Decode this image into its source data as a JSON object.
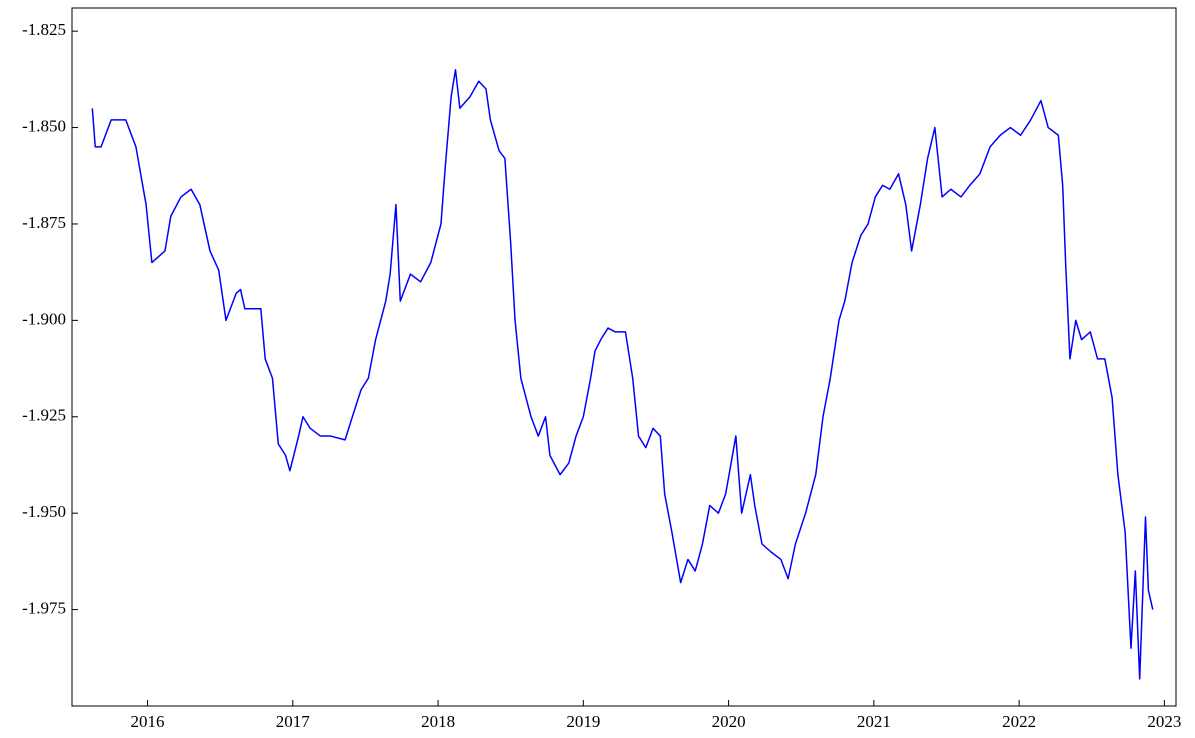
{
  "chart_data": {
    "type": "line",
    "x": [
      2015.62,
      2015.64,
      2015.68,
      2015.75,
      2015.85,
      2015.92,
      2015.99,
      2016.03,
      2016.12,
      2016.16,
      2016.23,
      2016.3,
      2016.36,
      2016.43,
      2016.49,
      2016.54,
      2016.61,
      2016.64,
      2016.67,
      2016.78,
      2016.81,
      2016.86,
      2016.9,
      2016.95,
      2016.98,
      2017.04,
      2017.07,
      2017.12,
      2017.19,
      2017.26,
      2017.36,
      2017.41,
      2017.47,
      2017.52,
      2017.57,
      2017.64,
      2017.67,
      2017.71,
      2017.74,
      2017.81,
      2017.88,
      2017.95,
      2018.02,
      2018.05,
      2018.09,
      2018.12,
      2018.15,
      2018.22,
      2018.28,
      2018.33,
      2018.36,
      2018.42,
      2018.46,
      2018.5,
      2018.53,
      2018.57,
      2018.64,
      2018.69,
      2018.74,
      2018.77,
      2018.84,
      2018.9,
      2018.95,
      2019.0,
      2019.05,
      2019.08,
      2019.12,
      2019.17,
      2019.22,
      2019.29,
      2019.34,
      2019.38,
      2019.43,
      2019.48,
      2019.53,
      2019.56,
      2019.61,
      2019.67,
      2019.72,
      2019.77,
      2019.82,
      2019.87,
      2019.93,
      2019.98,
      2020.05,
      2020.09,
      2020.15,
      2020.18,
      2020.23,
      2020.29,
      2020.36,
      2020.41,
      2020.46,
      2020.53,
      2020.6,
      2020.65,
      2020.7,
      2020.76,
      2020.8,
      2020.85,
      2020.91,
      2020.96,
      2021.01,
      2021.06,
      2021.11,
      2021.17,
      2021.22,
      2021.26,
      2021.32,
      2021.37,
      2021.42,
      2021.47,
      2021.53,
      2021.6,
      2021.66,
      2021.73,
      2021.8,
      2021.87,
      2021.94,
      2022.01,
      2022.08,
      2022.15,
      2022.2,
      2022.27,
      2022.3,
      2022.32,
      2022.35,
      2022.39,
      2022.43,
      2022.49,
      2022.54,
      2022.59,
      2022.64,
      2022.68,
      2022.73,
      2022.77,
      2022.8,
      2022.83,
      2022.87,
      2022.89,
      2022.92
    ],
    "series": [
      {
        "color": "#0000ff",
        "values": [
          -1.845,
          -1.855,
          -1.855,
          -1.848,
          -1.848,
          -1.855,
          -1.87,
          -1.885,
          -1.882,
          -1.873,
          -1.868,
          -1.866,
          -1.87,
          -1.882,
          -1.887,
          -1.9,
          -1.893,
          -1.892,
          -1.897,
          -1.897,
          -1.91,
          -1.915,
          -1.932,
          -1.935,
          -1.939,
          -1.93,
          -1.925,
          -1.928,
          -1.93,
          -1.93,
          -1.931,
          -1.925,
          -1.918,
          -1.915,
          -1.905,
          -1.895,
          -1.888,
          -1.87,
          -1.895,
          -1.888,
          -1.89,
          -1.885,
          -1.875,
          -1.86,
          -1.842,
          -1.835,
          -1.845,
          -1.842,
          -1.838,
          -1.84,
          -1.848,
          -1.856,
          -1.858,
          -1.88,
          -1.9,
          -1.915,
          -1.925,
          -1.93,
          -1.925,
          -1.935,
          -1.94,
          -1.937,
          -1.93,
          -1.925,
          -1.915,
          -1.908,
          -1.905,
          -1.902,
          -1.903,
          -1.903,
          -1.915,
          -1.93,
          -1.933,
          -1.928,
          -1.93,
          -1.945,
          -1.955,
          -1.968,
          -1.962,
          -1.965,
          -1.958,
          -1.948,
          -1.95,
          -1.945,
          -1.93,
          -1.95,
          -1.94,
          -1.948,
          -1.958,
          -1.96,
          -1.962,
          -1.967,
          -1.958,
          -1.95,
          -1.94,
          -1.925,
          -1.915,
          -1.9,
          -1.895,
          -1.885,
          -1.878,
          -1.875,
          -1.868,
          -1.865,
          -1.866,
          -1.862,
          -1.87,
          -1.882,
          -1.87,
          -1.858,
          -1.85,
          -1.868,
          -1.866,
          -1.868,
          -1.865,
          -1.862,
          -1.855,
          -1.852,
          -1.85,
          -1.852,
          -1.848,
          -1.843,
          -1.85,
          -1.852,
          -1.865,
          -1.885,
          -1.91,
          -1.9,
          -1.905,
          -1.903,
          -1.91,
          -1.91,
          -1.92,
          -1.94,
          -1.955,
          -1.985,
          -1.965,
          -1.993,
          -1.951,
          -1.97,
          -1.975
        ]
      }
    ],
    "xlim": [
      2015.48,
      2023.08
    ],
    "xticks": [
      2016,
      2017,
      2018,
      2019,
      2020,
      2021,
      2022,
      2023
    ],
    "ylim": [
      -2.0,
      -1.819
    ],
    "yticks": [
      -1.825,
      {
        "value": -1.85,
        "label": "-1.850"
      },
      -1.875,
      {
        "value": -1.9,
        "label": "-1.900"
      },
      -1.925,
      {
        "value": -1.95,
        "label": "-1.950"
      },
      -1.975
    ]
  }
}
